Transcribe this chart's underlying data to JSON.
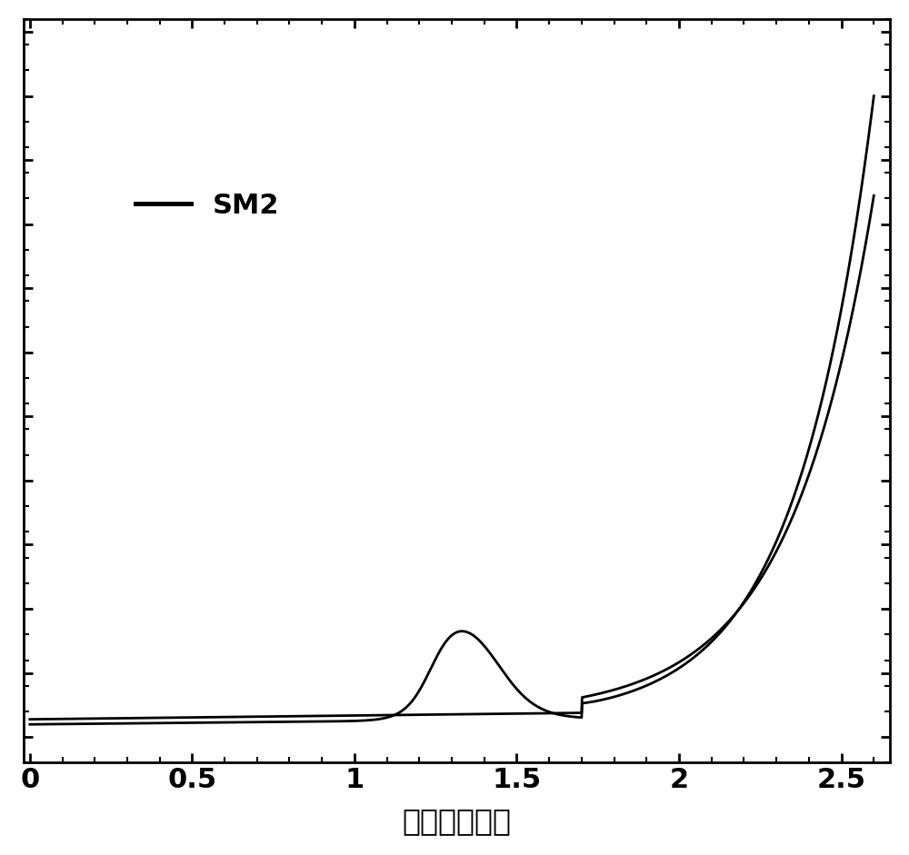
{
  "xlabel": "电压（伏特）",
  "legend_label": "SM2",
  "line_color": "#000000",
  "line_width": 2.0,
  "background_color": "#ffffff",
  "xlim": [
    -0.02,
    2.65
  ],
  "xticks": [
    0,
    0.5,
    1.0,
    1.5,
    2.0,
    2.5
  ],
  "xlabel_fontsize": 24,
  "tick_fontsize": 22,
  "legend_fontsize": 22
}
